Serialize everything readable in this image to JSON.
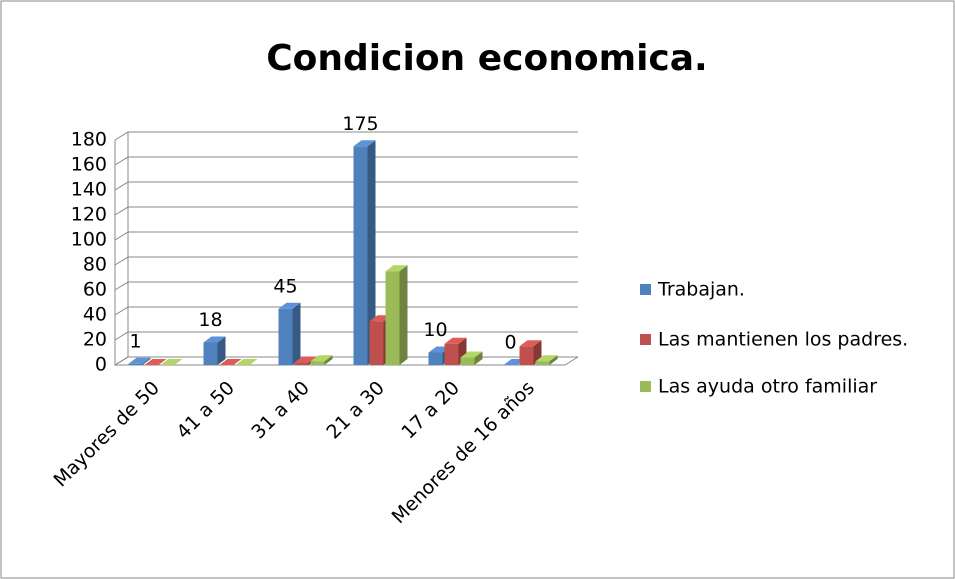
{
  "chart_data": {
    "type": "bar3d",
    "title": "Condicion economica.",
    "categories": [
      "Mayores de 50",
      "41 a 50",
      "31 a 40",
      "21 a 30",
      "17 a 20",
      "Menores de 16 años"
    ],
    "series": [
      {
        "name": "Trabajan.",
        "color": "#4f81bd",
        "values": [
          1,
          18,
          45,
          175,
          10,
          0
        ],
        "data_labels": true
      },
      {
        "name": "Las mantienen los padres.",
        "color": "#c0504d",
        "values": [
          0,
          0,
          2,
          35,
          17,
          15
        ],
        "data_labels": false
      },
      {
        "name": "Las ayuda otro familiar",
        "color": "#9bbb59",
        "values": [
          0,
          0,
          3,
          75,
          6,
          3
        ],
        "data_labels": false
      }
    ],
    "ylim": [
      0,
      180
    ],
    "yticks": [
      0,
      20,
      40,
      60,
      80,
      100,
      120,
      140,
      160,
      180
    ],
    "grid": true,
    "legend": "right"
  }
}
